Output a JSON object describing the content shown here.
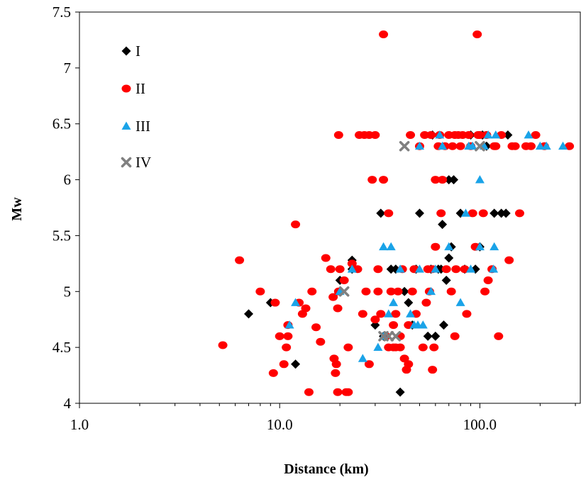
{
  "chart_data": {
    "type": "scatter",
    "title": "",
    "xlabel": "Distance (km)",
    "ylabel": "Mw",
    "x_scale": "log",
    "xlim": [
      1.0,
      320
    ],
    "ylim": [
      4,
      7.5
    ],
    "x_ticks": [
      1.0,
      10.0,
      100.0
    ],
    "x_tick_labels": [
      "1.0",
      "10.0",
      "100.0"
    ],
    "y_ticks": [
      4,
      4.5,
      5,
      5.5,
      6,
      6.5,
      7,
      7.5
    ],
    "y_tick_labels": [
      "4",
      "4.5",
      "5",
      "5.5",
      "6",
      "6.5",
      "7",
      "7.5"
    ],
    "grid": false,
    "legend_position": "top-left",
    "series": [
      {
        "name": "I",
        "marker": "diamond",
        "color": "#000000",
        "points": [
          [
            7,
            4.8
          ],
          [
            9,
            4.9
          ],
          [
            12,
            4.35
          ],
          [
            20,
            5.1
          ],
          [
            23,
            5.28
          ],
          [
            23,
            5.2
          ],
          [
            32,
            5.7
          ],
          [
            30,
            4.7
          ],
          [
            33,
            4.6
          ],
          [
            36,
            5.2
          ],
          [
            38,
            5.2
          ],
          [
            40,
            4.1
          ],
          [
            42,
            5.0
          ],
          [
            44,
            4.9
          ],
          [
            46,
            4.7
          ],
          [
            48,
            5.2
          ],
          [
            50,
            5.7
          ],
          [
            55,
            4.6
          ],
          [
            57,
            5.2
          ],
          [
            58,
            6.4
          ],
          [
            60,
            4.6
          ],
          [
            62,
            5.2
          ],
          [
            64,
            5.2
          ],
          [
            65,
            5.6
          ],
          [
            66,
            4.7
          ],
          [
            68,
            5.1
          ],
          [
            70,
            5.3
          ],
          [
            72,
            5.4
          ],
          [
            70,
            6.0
          ],
          [
            74,
            6.0
          ],
          [
            80,
            5.7
          ],
          [
            84,
            5.2
          ],
          [
            90,
            6.4
          ],
          [
            95,
            5.2
          ],
          [
            100,
            5.4
          ],
          [
            103,
            6.4
          ],
          [
            108,
            6.3
          ],
          [
            118,
            5.7
          ],
          [
            128,
            5.7
          ],
          [
            135,
            5.7
          ],
          [
            138,
            6.4
          ]
        ]
      },
      {
        "name": "II",
        "marker": "circle",
        "color": "#ff0000",
        "points": [
          [
            5.2,
            4.52
          ],
          [
            6.3,
            5.28
          ],
          [
            8,
            5.0
          ],
          [
            9.3,
            4.27
          ],
          [
            9.5,
            4.9
          ],
          [
            10,
            4.6
          ],
          [
            10.5,
            4.35
          ],
          [
            10.8,
            4.5
          ],
          [
            11,
            4.6
          ],
          [
            11,
            4.7
          ],
          [
            12,
            5.6
          ],
          [
            12.5,
            4.9
          ],
          [
            13,
            4.8
          ],
          [
            13.5,
            4.85
          ],
          [
            14,
            4.1
          ],
          [
            14.5,
            5.0
          ],
          [
            15.2,
            4.68
          ],
          [
            16,
            4.55
          ],
          [
            17,
            5.3
          ],
          [
            18,
            5.2
          ],
          [
            18.5,
            4.95
          ],
          [
            18.7,
            4.4
          ],
          [
            19,
            4.27
          ],
          [
            19.2,
            4.35
          ],
          [
            19.5,
            4.1
          ],
          [
            19.5,
            4.85
          ],
          [
            19.7,
            5.0
          ],
          [
            19.7,
            6.4
          ],
          [
            20,
            5.2
          ],
          [
            21,
            5.1
          ],
          [
            21.5,
            4.1
          ],
          [
            22,
            4.1
          ],
          [
            22,
            4.5
          ],
          [
            23,
            5.25
          ],
          [
            24.5,
            5.2
          ],
          [
            25,
            6.4
          ],
          [
            26,
            4.8
          ],
          [
            26.5,
            6.4
          ],
          [
            27,
            5.0
          ],
          [
            28,
            4.35
          ],
          [
            28,
            6.4
          ],
          [
            29,
            6.0
          ],
          [
            30,
            4.75
          ],
          [
            30,
            6.4
          ],
          [
            31,
            5.0
          ],
          [
            31,
            5.2
          ],
          [
            32,
            4.8
          ],
          [
            33,
            6.0
          ],
          [
            33,
            7.3
          ],
          [
            34,
            4.6
          ],
          [
            35,
            4.5
          ],
          [
            35,
            5.7
          ],
          [
            36,
            5.0
          ],
          [
            37,
            4.7
          ],
          [
            37,
            4.5
          ],
          [
            38,
            4.8
          ],
          [
            38,
            4.5
          ],
          [
            39,
            5.0
          ],
          [
            40,
            4.6
          ],
          [
            40,
            4.5
          ],
          [
            41,
            5.2
          ],
          [
            42,
            4.4
          ],
          [
            43,
            4.3
          ],
          [
            44,
            4.35
          ],
          [
            44,
            4.7
          ],
          [
            45,
            6.4
          ],
          [
            46,
            5.0
          ],
          [
            47,
            5.2
          ],
          [
            48,
            4.8
          ],
          [
            50,
            6.3
          ],
          [
            52,
            4.5
          ],
          [
            53,
            6.4
          ],
          [
            54,
            4.9
          ],
          [
            55,
            5.2
          ],
          [
            56,
            5.0
          ],
          [
            57,
            6.4
          ],
          [
            58,
            4.3
          ],
          [
            58,
            5.2
          ],
          [
            59,
            4.5
          ],
          [
            60,
            5.4
          ],
          [
            60,
            6.0
          ],
          [
            62,
            6.3
          ],
          [
            63,
            6.4
          ],
          [
            64,
            5.7
          ],
          [
            65,
            6.0
          ],
          [
            67,
            6.3
          ],
          [
            68,
            5.2
          ],
          [
            70,
            6.4
          ],
          [
            72,
            5.0
          ],
          [
            73,
            6.3
          ],
          [
            75,
            4.6
          ],
          [
            75,
            6.4
          ],
          [
            76,
            5.2
          ],
          [
            78,
            6.4
          ],
          [
            80,
            6.3
          ],
          [
            82,
            6.4
          ],
          [
            84,
            5.2
          ],
          [
            86,
            4.8
          ],
          [
            88,
            6.4
          ],
          [
            90,
            6.3
          ],
          [
            92,
            5.7
          ],
          [
            95,
            5.4
          ],
          [
            97,
            7.3
          ],
          [
            98,
            6.4
          ],
          [
            100,
            6.4
          ],
          [
            104,
            5.7
          ],
          [
            106,
            5.0
          ],
          [
            108,
            6.4
          ],
          [
            110,
            5.1
          ],
          [
            115,
            5.2
          ],
          [
            118,
            6.3
          ],
          [
            120,
            6.3
          ],
          [
            124,
            4.6
          ],
          [
            128,
            6.4
          ],
          [
            140,
            5.28
          ],
          [
            145,
            6.3
          ],
          [
            150,
            6.3
          ],
          [
            158,
            5.7
          ],
          [
            170,
            6.3
          ],
          [
            180,
            6.3
          ],
          [
            190,
            6.4
          ],
          [
            210,
            6.3
          ],
          [
            280,
            6.3
          ]
        ]
      },
      {
        "name": "III",
        "marker": "triangle",
        "color": "#1aa3e8",
        "points": [
          [
            11.2,
            4.7
          ],
          [
            12,
            4.9
          ],
          [
            20,
            5.0
          ],
          [
            23,
            5.2
          ],
          [
            26,
            4.4
          ],
          [
            31,
            4.5
          ],
          [
            33,
            4.6
          ],
          [
            33,
            5.4
          ],
          [
            35,
            4.8
          ],
          [
            36,
            5.4
          ],
          [
            37,
            4.9
          ],
          [
            40,
            5.2
          ],
          [
            45,
            4.8
          ],
          [
            47,
            4.7
          ],
          [
            49,
            4.7
          ],
          [
            50,
            5.2
          ],
          [
            50,
            6.3
          ],
          [
            52,
            4.7
          ],
          [
            57,
            5.0
          ],
          [
            60,
            5.2
          ],
          [
            63,
            6.4
          ],
          [
            65,
            6.3
          ],
          [
            70,
            5.4
          ],
          [
            80,
            4.9
          ],
          [
            85,
            5.7
          ],
          [
            88,
            6.3
          ],
          [
            90,
            5.2
          ],
          [
            92,
            6.3
          ],
          [
            100,
            5.4
          ],
          [
            100,
            6.0
          ],
          [
            105,
            6.3
          ],
          [
            110,
            6.4
          ],
          [
            117,
            5.2
          ],
          [
            118,
            5.4
          ],
          [
            120,
            6.4
          ],
          [
            175,
            6.4
          ],
          [
            200,
            6.3
          ],
          [
            215,
            6.3
          ],
          [
            260,
            6.3
          ]
        ]
      },
      {
        "name": "IV",
        "marker": "x",
        "color": "#808080",
        "points": [
          [
            21,
            5.0
          ],
          [
            33,
            4.6
          ],
          [
            35,
            4.6
          ],
          [
            38,
            4.6
          ],
          [
            42,
            6.3
          ],
          [
            100,
            6.3
          ]
        ]
      }
    ]
  }
}
